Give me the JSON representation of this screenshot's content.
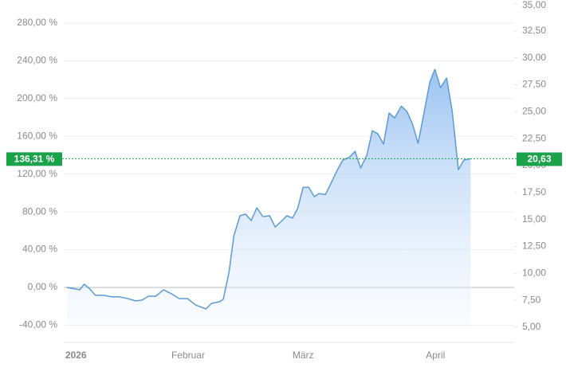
{
  "chart_data": {
    "type": "area",
    "x": [
      0,
      1.6,
      2.3,
      3.1,
      4.1,
      5.1,
      6.6,
      8,
      9.4,
      10.9,
      12.3,
      13.4,
      14.6,
      15.9,
      17.3,
      18.7,
      20.1,
      21.6,
      23,
      24.9,
      25.9,
      27.3,
      28,
      29,
      29.9,
      31,
      32,
      33,
      34,
      35.1,
      36.3,
      37.3,
      38.4,
      39.4,
      40.4,
      41.3,
      42.3,
      43.3,
      44.3,
      45.1,
      46.3,
      47.3,
      48.4,
      49.4,
      50.6,
      51.6,
      52.6,
      53.7,
      54.7,
      55.7,
      56.7,
      57.7,
      58.7,
      59.9,
      60.9,
      61.9,
      62.9,
      64,
      65,
      65.9,
      66.9,
      68,
      69,
      70.1,
      71.1,
      72.3
    ],
    "values": [
      0,
      -1.7,
      -2.5,
      3.4,
      -1.7,
      -8.4,
      -8.4,
      -10,
      -10,
      -11.8,
      -14.3,
      -13.5,
      -9.3,
      -9.3,
      -2.5,
      -6.7,
      -11.8,
      -11.8,
      -18.5,
      -22.8,
      -16.9,
      -15.2,
      -12.6,
      15.2,
      54.8,
      75.9,
      77.6,
      70.8,
      84.3,
      75,
      75.9,
      64,
      70,
      75.9,
      73.4,
      83.5,
      106,
      106,
      96,
      99.4,
      98.5,
      110.5,
      124,
      134.9,
      138,
      144,
      126.5,
      140,
      166,
      162.6,
      151.8,
      184.7,
      179.6,
      192,
      186.3,
      172.9,
      152.6,
      186.3,
      217.5,
      231,
      211.6,
      221.8,
      186.3,
      124.8,
      134.9,
      136.31
    ],
    "color": "#5b9bd5",
    "xlim": [
      0,
      80.1
    ],
    "xticks": [
      {
        "value": 1.6,
        "label": "2026"
      },
      {
        "value": 21.7,
        "label": "Februar"
      },
      {
        "value": 42.3,
        "label": "März"
      },
      {
        "value": 66,
        "label": "April"
      }
    ],
    "ylim": [
      -42.2,
      300.2
    ],
    "yticks": [
      {
        "value": -40,
        "label": "-40,00 %"
      },
      {
        "value": 0,
        "label": "0,00 %"
      },
      {
        "value": 40,
        "label": "40,00 %"
      },
      {
        "value": 80,
        "label": "80,00 %"
      },
      {
        "value": 120,
        "label": "120,00 %"
      },
      {
        "value": 160,
        "label": "160,00 %"
      },
      {
        "value": 200,
        "label": "200,00 %"
      },
      {
        "value": 240,
        "label": "240,00 %"
      },
      {
        "value": 280,
        "label": "280,00 %"
      }
    ],
    "y2lim": [
      5,
      35
    ],
    "y2ticks": [
      {
        "value": 5,
        "label": "5,00"
      },
      {
        "value": 7.5,
        "label": "7,50"
      },
      {
        "value": 10,
        "label": "10,00"
      },
      {
        "value": 12.5,
        "label": "12,50"
      },
      {
        "value": 15,
        "label": "15,00"
      },
      {
        "value": 17.5,
        "label": "17,50"
      },
      {
        "value": 20,
        "label": "20,00"
      },
      {
        "value": 22.5,
        "label": "22,50"
      },
      {
        "value": 25,
        "label": "25,00"
      },
      {
        "value": 27.5,
        "label": "27,50"
      },
      {
        "value": 30,
        "label": "30,00"
      },
      {
        "value": 32.5,
        "label": "32,50"
      },
      {
        "value": 35,
        "label": "35,00"
      }
    ],
    "grid": true,
    "annotations": [
      {
        "value": 136.31,
        "label": "136,31 %",
        "axis": "y",
        "color": "#1aa34a"
      },
      {
        "value": 20.63,
        "label": "20,63",
        "axis": "y2",
        "color": "#1aa34a"
      }
    ]
  }
}
